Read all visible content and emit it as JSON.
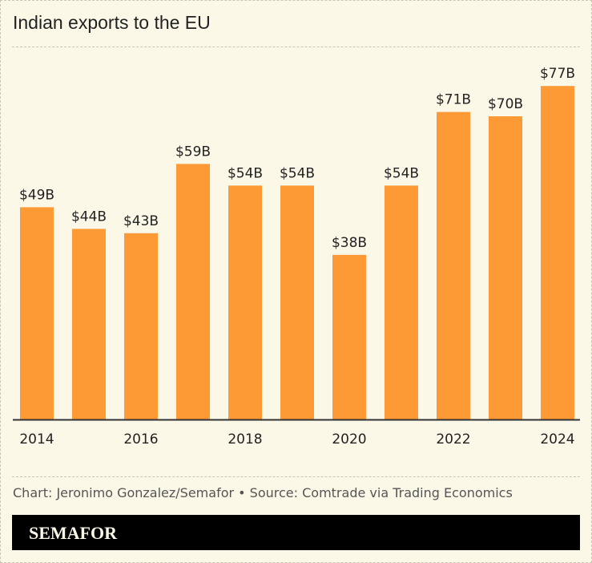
{
  "title": "Indian exports to the EU",
  "credit": "Chart: Jeronimo Gonzalez/Semafor • Source: Comtrade via Trading Economics",
  "brand": "SEMAFOR",
  "chart_data": {
    "type": "bar",
    "title": "Indian exports to the EU",
    "categories": [
      "2014",
      "2015",
      "2016",
      "2017",
      "2018",
      "2019",
      "2020",
      "2021",
      "2022",
      "2023",
      "2024"
    ],
    "values": [
      49,
      44,
      43,
      59,
      54,
      54,
      38,
      54,
      71,
      70,
      77
    ],
    "data_labels": [
      "$49B",
      "$44B",
      "$43B",
      "$59B",
      "$54B",
      "$54B",
      "$38B",
      "$54B",
      "$71B",
      "$70B",
      "$77B"
    ],
    "x_tick_labels": [
      "2014",
      "2016",
      "2018",
      "2020",
      "2022",
      "2024"
    ],
    "unit": "billion USD",
    "grid": false,
    "bar_color": "#fd9a36",
    "background_color": "#fbf8e8"
  }
}
